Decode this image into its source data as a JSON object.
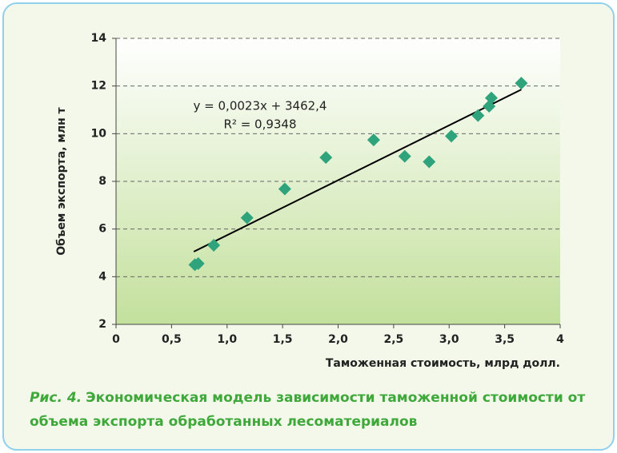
{
  "chart_data": {
    "type": "scatter",
    "x_label": "Таможенная стоимость, млрд долл.",
    "y_label": "Объем экспорта, млн т",
    "x": [
      0.71,
      0.74,
      0.88,
      1.18,
      1.52,
      1.89,
      2.32,
      2.6,
      2.82,
      3.02,
      3.26,
      3.36,
      3.38,
      3.65
    ],
    "values": [
      4.5,
      4.55,
      5.32,
      6.47,
      7.68,
      9.0,
      9.74,
      9.05,
      8.82,
      9.9,
      10.76,
      11.15,
      11.5,
      12.12
    ],
    "color": "#2ea37c",
    "trendline": {
      "x": [
        0.7,
        3.65
      ],
      "y": [
        5.05,
        11.85
      ],
      "color": "#000000"
    },
    "equation": "y = 0,0023x + 3462,4",
    "r_squared": "R² = 0,9348",
    "xlim": [
      0,
      4
    ],
    "xticks": [
      0,
      {
        "value": 0.5,
        "label": "0,5"
      },
      {
        "value": 1,
        "label": "1,0"
      },
      {
        "value": 1.5,
        "label": "1,5"
      },
      {
        "value": 2,
        "label": "2,0"
      },
      {
        "value": 2.5,
        "label": "2,5"
      },
      {
        "value": 3,
        "label": "3,0"
      },
      {
        "value": 3.5,
        "label": "3,5"
      },
      4
    ],
    "ylim": [
      2,
      14
    ],
    "yticks": [
      2,
      4,
      6,
      8,
      10,
      12,
      14
    ],
    "grid": true,
    "caption_label": "Рис. 4.",
    "caption": "Экономическая модель зависимости таможенной стоимости от объема экспорта обработанных лесоматериалов"
  }
}
